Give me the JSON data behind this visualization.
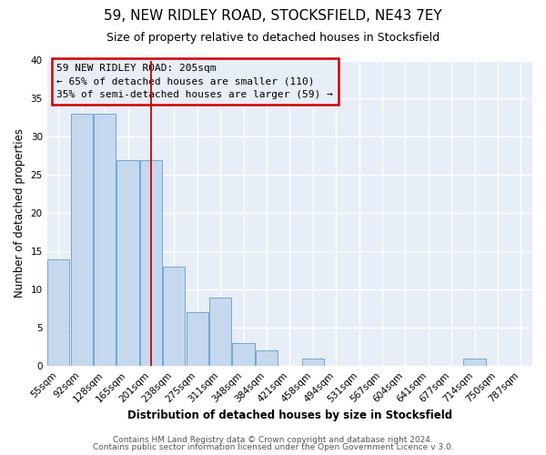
{
  "title": "59, NEW RIDLEY ROAD, STOCKSFIELD, NE43 7EY",
  "subtitle": "Size of property relative to detached houses in Stocksfield",
  "xlabel": "Distribution of detached houses by size in Stocksfield",
  "ylabel": "Number of detached properties",
  "bin_labels": [
    "55sqm",
    "92sqm",
    "128sqm",
    "165sqm",
    "201sqm",
    "238sqm",
    "275sqm",
    "311sqm",
    "348sqm",
    "384sqm",
    "421sqm",
    "458sqm",
    "494sqm",
    "531sqm",
    "567sqm",
    "604sqm",
    "641sqm",
    "677sqm",
    "714sqm",
    "750sqm",
    "787sqm"
  ],
  "bar_heights": [
    14,
    33,
    33,
    27,
    27,
    13,
    7,
    9,
    3,
    2,
    0,
    1,
    0,
    0,
    0,
    0,
    0,
    0,
    1,
    0,
    0
  ],
  "bar_color": "#c5d8ee",
  "bar_edge_color": "#6fa8d0",
  "property_line_index": 4,
  "annotation_title": "59 NEW RIDLEY ROAD: 205sqm",
  "annotation_line1": "← 65% of detached houses are smaller (110)",
  "annotation_line2": "35% of semi-detached houses are larger (59) →",
  "annotation_box_color": "#cc0000",
  "ylim": [
    0,
    40
  ],
  "yticks": [
    0,
    5,
    10,
    15,
    20,
    25,
    30,
    35,
    40
  ],
  "footer1": "Contains HM Land Registry data © Crown copyright and database right 2024.",
  "footer2": "Contains public sector information licensed under the Open Government Licence v 3.0.",
  "bg_color": "#ffffff",
  "plot_bg_color": "#e8eef7",
  "grid_color": "#ffffff",
  "title_fontsize": 11,
  "subtitle_fontsize": 9,
  "axis_label_fontsize": 8.5,
  "tick_fontsize": 7.5,
  "annotation_fontsize": 8
}
